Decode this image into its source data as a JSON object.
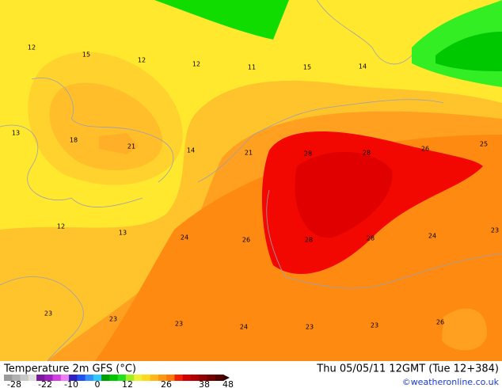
{
  "title": "Temperature 2m GFS (°C)",
  "run": "Thu 05/05/11 12GMT (Tue 12+384)",
  "credit": "©weatheronline.co.uk",
  "colorbar_labels": [
    -28,
    -22,
    -10,
    0,
    12,
    26,
    38,
    48
  ],
  "map_labels": [
    12,
    15,
    12,
    12,
    11,
    15,
    14,
    13,
    18,
    21,
    14,
    21,
    28,
    28,
    26,
    25,
    12,
    13,
    24,
    26,
    28,
    28,
    24,
    23,
    23,
    23,
    23,
    24,
    23,
    23,
    26
  ]
}
